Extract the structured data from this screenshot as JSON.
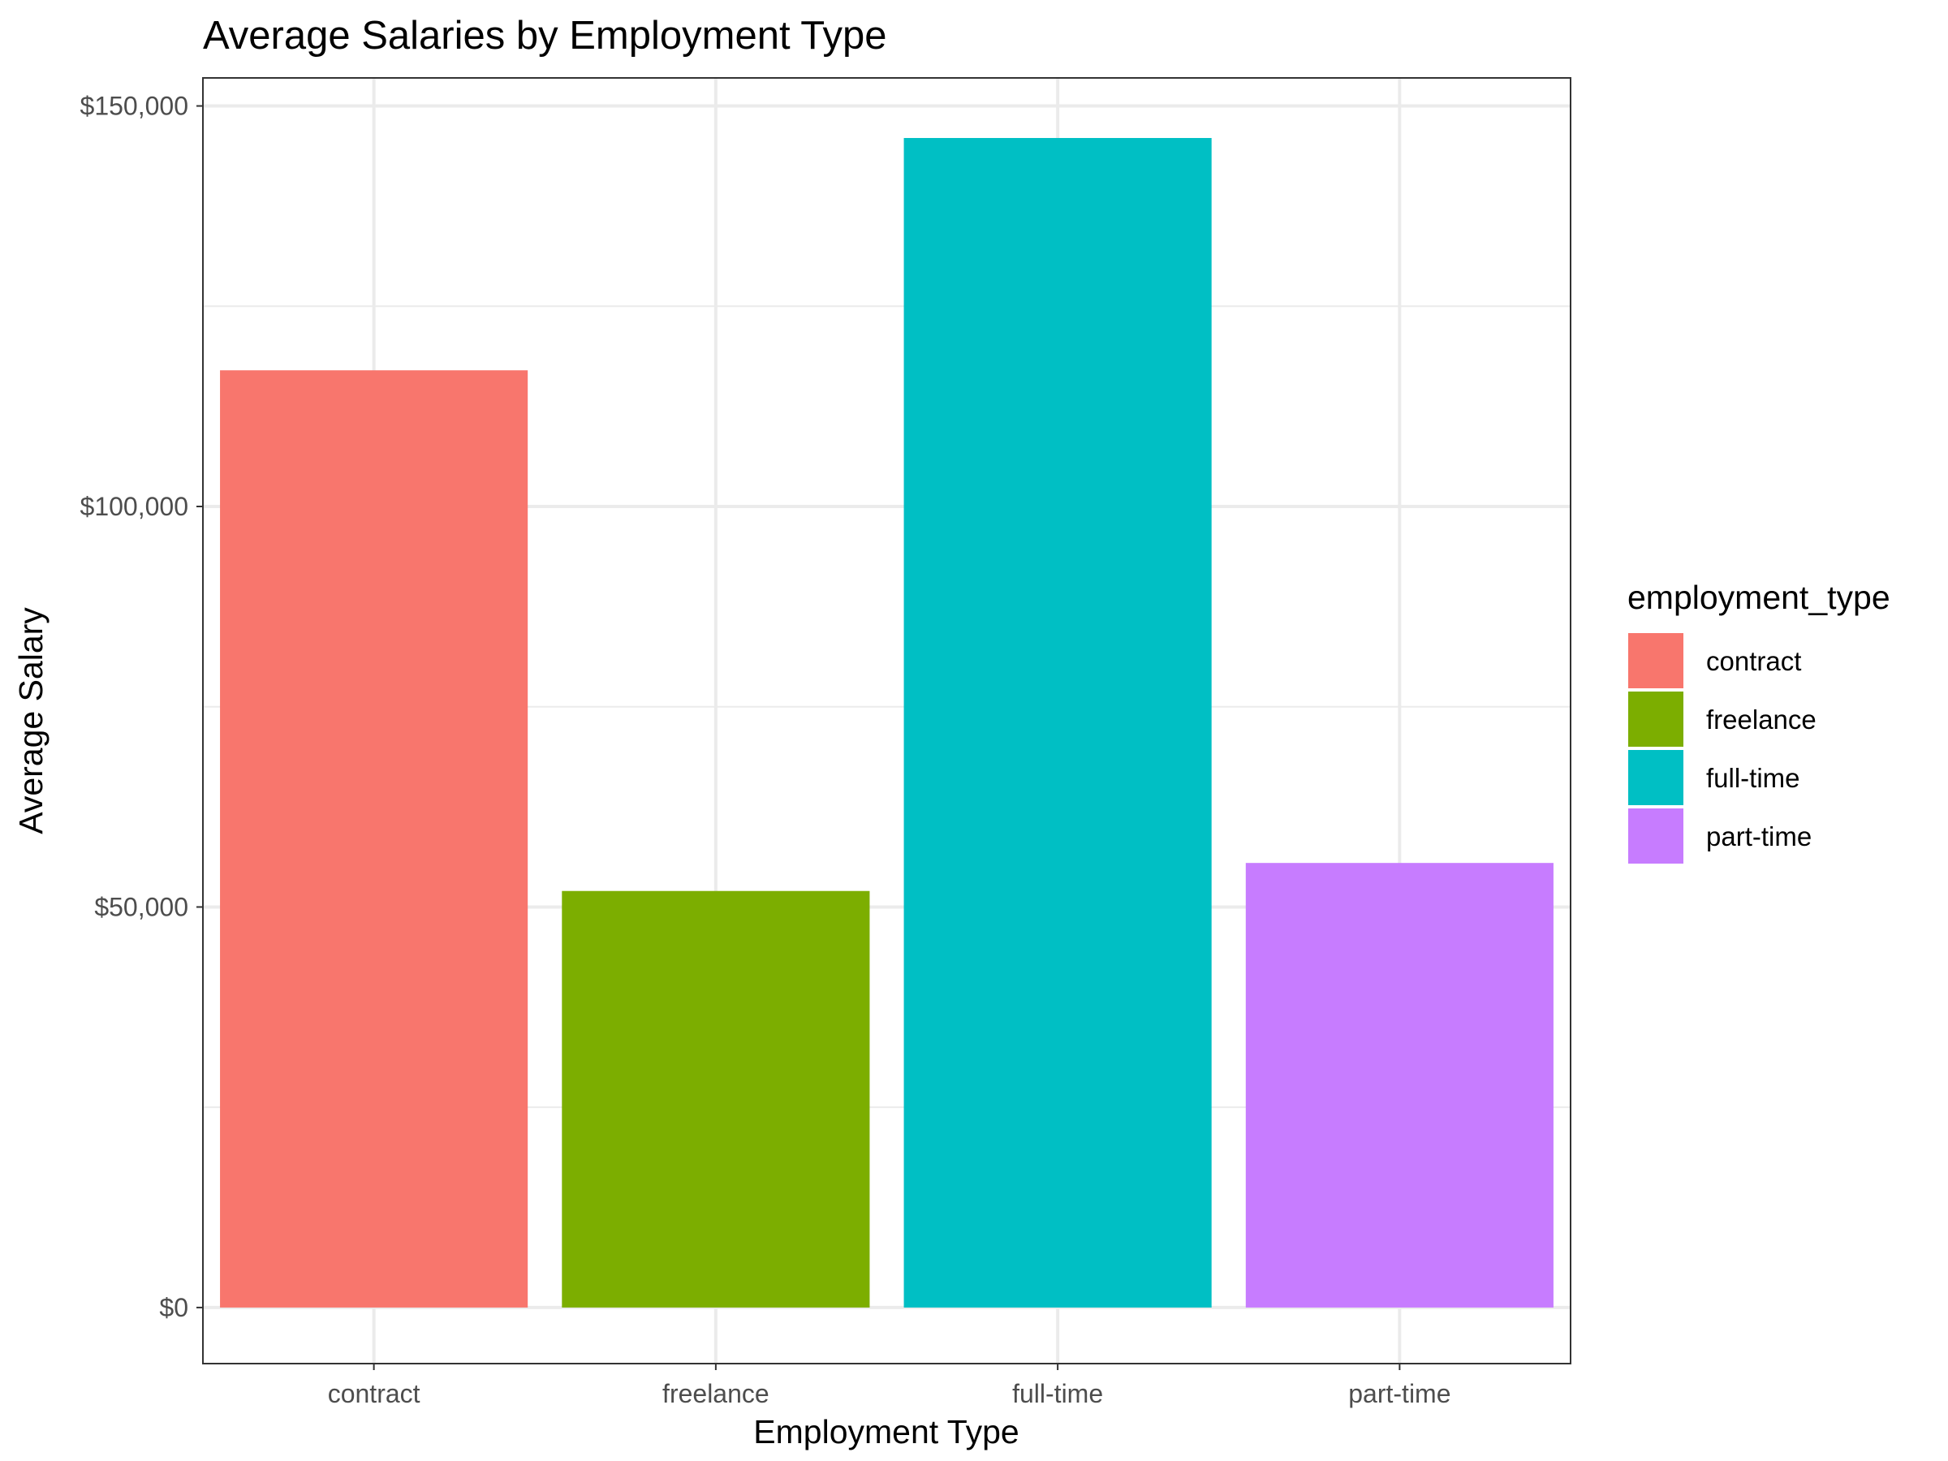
{
  "chart_data": {
    "type": "bar",
    "title": "Average Salaries by Employment Type",
    "xlabel": "Employment Type",
    "ylabel": "Average Salary",
    "categories": [
      "contract",
      "freelance",
      "full-time",
      "part-time"
    ],
    "values": [
      117000,
      52000,
      146000,
      55500
    ],
    "colors": [
      "#F8766D",
      "#7CAE00",
      "#00BFC4",
      "#C77CFF"
    ],
    "ylim": [
      -7000,
      153500
    ],
    "y_ticks": [
      0,
      50000,
      100000,
      150000
    ],
    "y_tick_labels": [
      "$0",
      "$50,000",
      "$100,000",
      "$150,000"
    ],
    "y_minor_ticks": [
      25000,
      75000,
      125000
    ],
    "grid": true,
    "legend": {
      "title": "employment_type",
      "position": "right",
      "entries": [
        "contract",
        "freelance",
        "full-time",
        "part-time"
      ]
    }
  }
}
